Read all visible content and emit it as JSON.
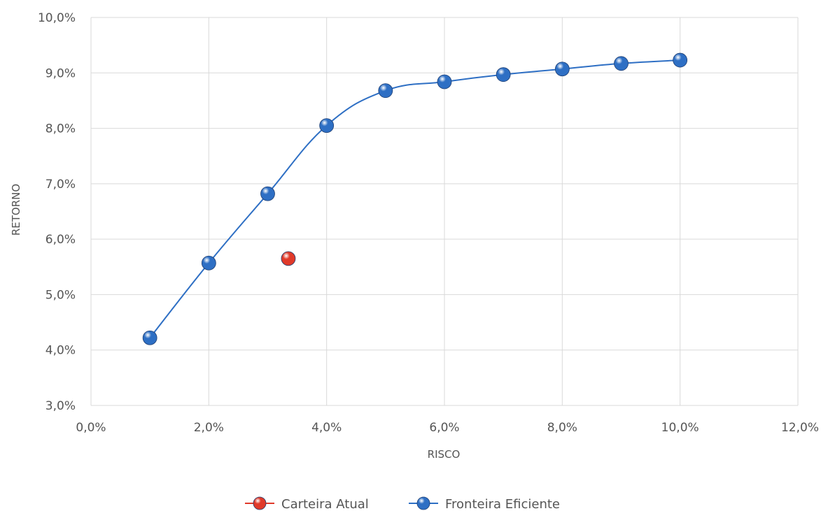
{
  "chart_data": {
    "type": "scatter",
    "xlabel": "RISCO",
    "ylabel": "RETORNO",
    "xlim": [
      0,
      12
    ],
    "ylim": [
      3,
      10
    ],
    "x_ticks": [
      "0,0%",
      "2,0%",
      "4,0%",
      "6,0%",
      "8,0%",
      "10,0%",
      "12,0%"
    ],
    "y_ticks": [
      "3,0%",
      "4,0%",
      "5,0%",
      "6,0%",
      "7,0%",
      "8,0%",
      "9,0%",
      "10,0%"
    ],
    "grid": true,
    "legend_position": "bottom",
    "series": [
      {
        "name": "Carteira Atual",
        "color": "#e03a2a",
        "line": false,
        "points": [
          [
            3.35,
            5.65
          ]
        ]
      },
      {
        "name": "Fronteira Eficiente",
        "color": "#2e6fc4",
        "line": true,
        "smooth": true,
        "points": [
          [
            1,
            4.22
          ],
          [
            2,
            5.57
          ],
          [
            3,
            6.82
          ],
          [
            4,
            8.05
          ],
          [
            5,
            8.68
          ],
          [
            6,
            8.84
          ],
          [
            7,
            8.97
          ],
          [
            8,
            9.07
          ],
          [
            9,
            9.17
          ],
          [
            10,
            9.23
          ]
        ]
      }
    ]
  }
}
